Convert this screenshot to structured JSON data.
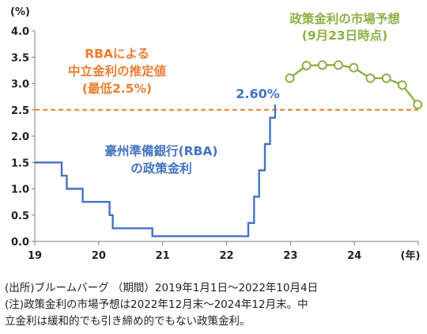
{
  "chart_data": {
    "type": "line",
    "y_unit": "(%)",
    "x_unit": "(年)",
    "xlim": [
      2019,
      2025
    ],
    "ylim": [
      0,
      4.0
    ],
    "x_ticks": [
      "19",
      "20",
      "21",
      "22",
      "23",
      "24"
    ],
    "y_ticks": [
      "0.0",
      "0.5",
      "1.0",
      "1.5",
      "2.0",
      "2.5",
      "3.0",
      "3.5",
      "4.0"
    ],
    "grid": false,
    "series": [
      {
        "name": "豪州準備銀行(RBA)の政策金利",
        "color": "#4472c4",
        "style": "step",
        "points": [
          [
            2019.0,
            1.5
          ],
          [
            2019.42,
            1.5
          ],
          [
            2019.42,
            1.25
          ],
          [
            2019.5,
            1.25
          ],
          [
            2019.5,
            1.0
          ],
          [
            2019.75,
            1.0
          ],
          [
            2019.75,
            0.75
          ],
          [
            2020.17,
            0.75
          ],
          [
            2020.17,
            0.5
          ],
          [
            2020.22,
            0.5
          ],
          [
            2020.22,
            0.25
          ],
          [
            2020.84,
            0.25
          ],
          [
            2020.84,
            0.1
          ],
          [
            2022.34,
            0.1
          ],
          [
            2022.34,
            0.35
          ],
          [
            2022.43,
            0.35
          ],
          [
            2022.43,
            0.85
          ],
          [
            2022.51,
            0.85
          ],
          [
            2022.51,
            1.35
          ],
          [
            2022.6,
            1.35
          ],
          [
            2022.6,
            1.85
          ],
          [
            2022.68,
            1.85
          ],
          [
            2022.68,
            2.35
          ],
          [
            2022.76,
            2.35
          ],
          [
            2022.76,
            2.6
          ]
        ]
      },
      {
        "name": "政策金利の市場予想(9月23日時点)",
        "color": "#8db042",
        "style": "line-markers",
        "points": [
          [
            2022.99,
            3.1
          ],
          [
            2023.25,
            3.34
          ],
          [
            2023.5,
            3.35
          ],
          [
            2023.75,
            3.35
          ],
          [
            2023.99,
            3.3
          ],
          [
            2024.25,
            3.1
          ],
          [
            2024.5,
            3.1
          ],
          [
            2024.75,
            2.97
          ],
          [
            2024.99,
            2.6
          ]
        ]
      },
      {
        "name": "RBAによる中立金利の推定値(最低2.5%)",
        "color": "#ed7d31",
        "style": "dashed-hline",
        "value": 2.5
      }
    ],
    "annotations": {
      "rba_label": [
        "豪州準備銀行(RBA)",
        "の政策金利"
      ],
      "neutral_label": [
        "RBAによる",
        "中立金利の推定値",
        "(最低2.5%)"
      ],
      "forecast_label": [
        "政策金利の市場予想",
        "(9月23日時点)"
      ],
      "last_value": "2.60%"
    }
  },
  "notes": [
    "(出所)ブルームバーグ （期間）2019年1月1日～2022年10月4日",
    "(注)政策金利の市場予想は2022年12月末～2024年12月末。中",
    "立金利は緩和的でも引き締め的でもない政策金利。"
  ]
}
